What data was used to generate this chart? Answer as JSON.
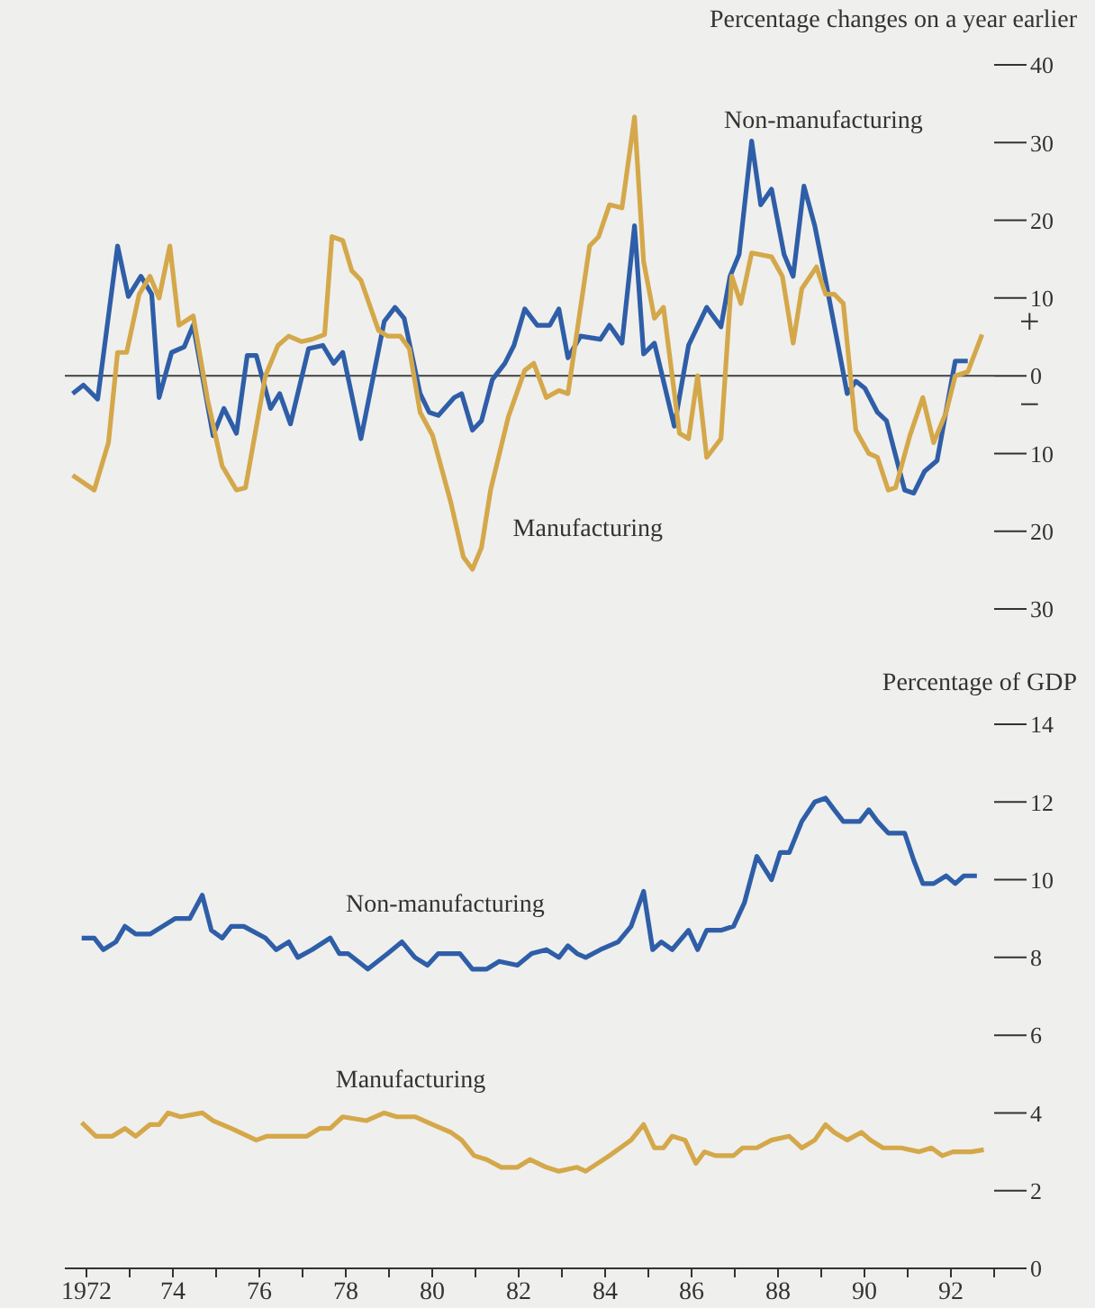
{
  "chart_data": [
    {
      "type": "line",
      "ylabel": "Percentage changes on a year earlier",
      "xlim": [
        1971.5,
        1993
      ],
      "ylim": [
        -30,
        40
      ],
      "yticks": [
        {
          "value": -30,
          "label": "30"
        },
        {
          "value": -20,
          "label": "20"
        },
        {
          "value": -10,
          "label": "10"
        },
        0,
        10,
        20,
        30,
        40
      ],
      "tick_labels": "y",
      "ref_lines": [
        {
          "axis": "y",
          "value": 0,
          "color": "#555555"
        }
      ],
      "annotations": [
        "+",
        "−"
      ],
      "series": [
        {
          "name": "Non-manufacturing",
          "color": "#2f5ea8",
          "x": [
            1971.68,
            1971.93,
            1972.26,
            1972.72,
            1972.97,
            1973.26,
            1973.51,
            1973.68,
            1973.97,
            1974.26,
            1974.47,
            1974.93,
            1975.18,
            1975.47,
            1975.72,
            1975.93,
            1976.26,
            1976.47,
            1976.72,
            1977.14,
            1977.47,
            1977.72,
            1977.93,
            1978.35,
            1978.89,
            1979.14,
            1979.35,
            1979.72,
            1979.93,
            1980.14,
            1980.51,
            1980.68,
            1980.93,
            1981.14,
            1981.39,
            1981.68,
            1981.89,
            1982.14,
            1982.43,
            1982.72,
            1982.93,
            1983.14,
            1983.43,
            1983.89,
            1984.1,
            1984.39,
            1984.68,
            1984.89,
            1985.14,
            1985.6,
            1985.93,
            1986.35,
            1986.68,
            1986.89,
            1987.1,
            1987.39,
            1987.6,
            1987.85,
            1988.14,
            1988.35,
            1988.6,
            1988.85,
            1989.1,
            1989.39,
            1989.6,
            1989.8,
            1990.01,
            1990.3,
            1990.51,
            1990.93,
            1991.14,
            1991.39,
            1991.68,
            1992.1,
            1992.39
          ],
          "values": [
            -2.3,
            -1.2,
            -3,
            16.7,
            10.2,
            12.8,
            10.5,
            -2.8,
            3,
            3.7,
            6.5,
            -7.7,
            -4.2,
            -7.4,
            2.6,
            2.6,
            -4.2,
            -2.3,
            -6.2,
            3.5,
            3.9,
            1.6,
            3,
            -8.1,
            7,
            8.8,
            7.4,
            -2.3,
            -4.7,
            -5.1,
            -2.8,
            -2.3,
            -7,
            -5.8,
            -0.5,
            1.6,
            3.9,
            8.6,
            6.5,
            6.5,
            8.6,
            2.3,
            5.1,
            4.7,
            6.5,
            4.2,
            19.3,
            2.8,
            4.2,
            -6.5,
            3.9,
            8.8,
            6.3,
            12.8,
            15.6,
            30.2,
            22,
            24,
            15.6,
            12.8,
            24.4,
            19.3,
            12.3,
            3.9,
            -2.3,
            -0.7,
            -1.6,
            -4.7,
            -5.8,
            -14.7,
            -15.1,
            -12.3,
            -10.9,
            1.9,
            1.9
          ]
        },
        {
          "name": "Manufacturing",
          "color": "#d4a84a",
          "x": [
            1971.68,
            1972.18,
            1972.51,
            1972.72,
            1972.93,
            1973.22,
            1973.47,
            1973.68,
            1973.93,
            1974.14,
            1974.47,
            1974.8,
            1975.14,
            1975.47,
            1975.68,
            1976.14,
            1976.43,
            1976.68,
            1976.97,
            1977.22,
            1977.51,
            1977.68,
            1977.93,
            1978.14,
            1978.35,
            1978.76,
            1978.97,
            1979.26,
            1979.47,
            1979.72,
            1980.01,
            1980.43,
            1980.72,
            1980.93,
            1981.14,
            1981.35,
            1981.76,
            1982.14,
            1982.35,
            1982.64,
            1982.93,
            1983.14,
            1983.64,
            1983.85,
            1984.1,
            1984.39,
            1984.68,
            1984.89,
            1985.14,
            1985.35,
            1985.72,
            1985.93,
            1986.14,
            1986.35,
            1986.68,
            1986.93,
            1987.14,
            1987.39,
            1987.85,
            1988.1,
            1988.35,
            1988.55,
            1988.89,
            1989.1,
            1989.3,
            1989.51,
            1989.8,
            1990.1,
            1990.3,
            1990.55,
            1990.72,
            1991.05,
            1991.35,
            1991.6,
            1991.89,
            1992.1,
            1992.39,
            1992.72
          ],
          "values": [
            -12.8,
            -14.7,
            -8.6,
            3,
            3,
            10.5,
            12.8,
            10,
            16.7,
            6.5,
            7.7,
            -3,
            -11.6,
            -14.7,
            -14.4,
            0,
            3.9,
            5.1,
            4.4,
            4.7,
            5.3,
            17.9,
            17.4,
            13.5,
            12.3,
            5.8,
            5.1,
            5.1,
            3.5,
            -4.7,
            -7.7,
            -16.3,
            -23.3,
            -24.9,
            -22.1,
            -14.7,
            -5.3,
            0.7,
            1.6,
            -2.8,
            -1.9,
            -2.3,
            16.7,
            17.9,
            22,
            21.6,
            33.3,
            14.7,
            7.4,
            8.8,
            -7.4,
            -8.1,
            0,
            -10.5,
            -8.1,
            12.8,
            9.3,
            15.8,
            15.3,
            12.8,
            4.2,
            11.2,
            14,
            10.5,
            10.5,
            9.3,
            -7,
            -10,
            -10.5,
            -14.7,
            -14.4,
            -7.7,
            -2.8,
            -8.6,
            -4.7,
            0,
            0.5,
            5.3
          ]
        }
      ]
    },
    {
      "type": "line",
      "ylabel": "Percentage of GDP",
      "xlim": [
        1971.5,
        1993
      ],
      "ylim": [
        0,
        14
      ],
      "yticks": [
        0,
        2,
        4,
        6,
        8,
        10,
        12,
        14
      ],
      "xticks": [
        {
          "value": 1972,
          "label": "1972"
        },
        {
          "value": 1973,
          "label": null
        },
        {
          "value": 1974,
          "label": "74"
        },
        {
          "value": 1975,
          "label": null
        },
        {
          "value": 1976,
          "label": "76"
        },
        {
          "value": 1977,
          "label": null
        },
        {
          "value": 1978,
          "label": "78"
        },
        {
          "value": 1979,
          "label": null
        },
        {
          "value": 1980,
          "label": "80"
        },
        {
          "value": 1981,
          "label": null
        },
        {
          "value": 1982,
          "label": "82"
        },
        {
          "value": 1983,
          "label": null
        },
        {
          "value": 1984,
          "label": "84"
        },
        {
          "value": 1985,
          "label": null
        },
        {
          "value": 1986,
          "label": "86"
        },
        {
          "value": 1987,
          "label": null
        },
        {
          "value": 1988,
          "label": "88"
        },
        {
          "value": 1989,
          "label": null
        },
        {
          "value": 1990,
          "label": "90"
        },
        {
          "value": 1991,
          "label": null
        },
        {
          "value": 1992,
          "label": "92"
        },
        {
          "value": 1993,
          "label": null
        }
      ],
      "series": [
        {
          "name": "Non-manufacturing",
          "color": "#2f5ea8",
          "x": [
            1971.89,
            1972.18,
            1972.39,
            1972.68,
            1972.89,
            1973.14,
            1973.47,
            1973.76,
            1974.05,
            1974.39,
            1974.68,
            1974.89,
            1975.14,
            1975.35,
            1975.64,
            1976.14,
            1976.39,
            1976.68,
            1976.89,
            1977.22,
            1977.64,
            1977.85,
            1978.05,
            1978.51,
            1978.97,
            1979.3,
            1979.6,
            1979.89,
            1980.14,
            1980.64,
            1980.93,
            1981.26,
            1981.55,
            1981.97,
            1982.3,
            1982.64,
            1982.93,
            1983.14,
            1983.35,
            1983.55,
            1983.89,
            1984.3,
            1984.6,
            1984.89,
            1985.1,
            1985.3,
            1985.55,
            1985.93,
            1986.14,
            1986.35,
            1986.68,
            1986.97,
            1987.22,
            1987.51,
            1987.85,
            1988.05,
            1988.26,
            1988.55,
            1988.85,
            1989.1,
            1989.3,
            1989.51,
            1989.89,
            1990.1,
            1990.3,
            1990.55,
            1990.93,
            1991.14,
            1991.35,
            1991.6,
            1991.89,
            1992.1,
            1992.3,
            1992.6
          ],
          "values": [
            8.5,
            8.5,
            8.2,
            8.4,
            8.8,
            8.6,
            8.6,
            8.8,
            9,
            9,
            9.6,
            8.7,
            8.5,
            8.8,
            8.8,
            8.5,
            8.2,
            8.4,
            8,
            8.2,
            8.5,
            8.1,
            8.1,
            7.7,
            8.1,
            8.4,
            8,
            7.8,
            8.1,
            8.1,
            7.7,
            7.7,
            7.9,
            7.8,
            8.1,
            8.2,
            8,
            8.3,
            8.1,
            8,
            8.2,
            8.4,
            8.8,
            9.7,
            8.2,
            8.4,
            8.2,
            8.7,
            8.2,
            8.7,
            8.7,
            8.8,
            9.4,
            10.6,
            10,
            10.7,
            10.7,
            11.5,
            12,
            12.1,
            11.8,
            11.5,
            11.5,
            11.8,
            11.5,
            11.2,
            11.2,
            10.5,
            9.9,
            9.9,
            10.1,
            9.9,
            10.1,
            10.1
          ]
        },
        {
          "name": "Manufacturing",
          "color": "#d4a84a",
          "x": [
            1971.89,
            1972.22,
            1972.6,
            1972.89,
            1973.14,
            1973.47,
            1973.68,
            1973.89,
            1974.18,
            1974.68,
            1974.93,
            1975.35,
            1975.93,
            1976.18,
            1977.1,
            1977.39,
            1977.64,
            1977.93,
            1978.47,
            1978.89,
            1979.18,
            1979.6,
            1980.01,
            1980.43,
            1980.68,
            1980.97,
            1981.26,
            1981.6,
            1981.97,
            1982.26,
            1982.64,
            1982.93,
            1983.35,
            1983.55,
            1984.1,
            1984.6,
            1984.89,
            1985.14,
            1985.35,
            1985.55,
            1985.85,
            1986.1,
            1986.3,
            1986.55,
            1986.97,
            1987.18,
            1987.51,
            1987.85,
            1988.26,
            1988.55,
            1988.85,
            1989.1,
            1989.3,
            1989.6,
            1989.93,
            1990.14,
            1990.43,
            1990.85,
            1991.26,
            1991.55,
            1991.8,
            1992.05,
            1992.47,
            1992.76
          ],
          "values": [
            3.75,
            3.4,
            3.4,
            3.6,
            3.4,
            3.7,
            3.7,
            4,
            3.9,
            4,
            3.8,
            3.6,
            3.3,
            3.4,
            3.4,
            3.6,
            3.6,
            3.9,
            3.8,
            4,
            3.9,
            3.9,
            3.7,
            3.5,
            3.3,
            2.9,
            2.8,
            2.6,
            2.6,
            2.8,
            2.6,
            2.5,
            2.6,
            2.5,
            2.9,
            3.3,
            3.7,
            3.1,
            3.1,
            3.4,
            3.3,
            2.7,
            3,
            2.9,
            2.9,
            3.1,
            3.1,
            3.3,
            3.4,
            3.1,
            3.3,
            3.7,
            3.5,
            3.3,
            3.5,
            3.3,
            3.1,
            3.1,
            3,
            3.1,
            2.9,
            3,
            3,
            3.05
          ]
        }
      ]
    }
  ]
}
